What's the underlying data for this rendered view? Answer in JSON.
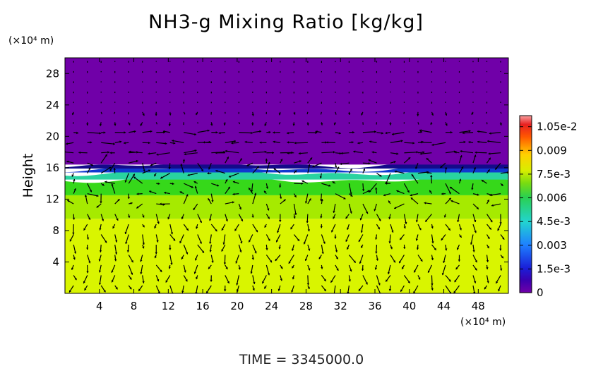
{
  "chart_data": {
    "type": "heatmap",
    "title": "NH3-g Mixing Ratio [kg/kg]",
    "ylabel": "Height",
    "y_unit": "(×10⁴ m)",
    "x_unit": "(×10⁴ m)",
    "footer": "TIME = 3345000.0",
    "x_ticks": [
      "4",
      "8",
      "12",
      "16",
      "20",
      "24",
      "28",
      "32",
      "36",
      "40",
      "44",
      "48"
    ],
    "x_tick_values": [
      4,
      8,
      12,
      16,
      20,
      24,
      28,
      32,
      36,
      40,
      44,
      48
    ],
    "y_ticks": [
      "4",
      "8",
      "12",
      "16",
      "20",
      "24",
      "28"
    ],
    "y_tick_values": [
      4,
      8,
      12,
      16,
      20,
      24,
      28
    ],
    "xlim": [
      0,
      51.5
    ],
    "ylim": [
      0,
      30
    ],
    "colorbar": {
      "labels": [
        "0",
        "1.5e-3",
        "0.003",
        "4.5e-3",
        "0.006",
        "7.5e-3",
        "0.009",
        "1.05e-2"
      ],
      "values": [
        0,
        0.0015,
        0.003,
        0.0045,
        0.006,
        0.0075,
        0.009,
        0.0105
      ],
      "range": [
        0,
        0.0112
      ]
    },
    "field_layers": [
      {
        "from_height": 0,
        "to_height": 9.5,
        "value": 0.008,
        "color": "#d9f500"
      },
      {
        "from_height": 9.5,
        "to_height": 12.5,
        "value": 0.0072,
        "color": "#a6ea00"
      },
      {
        "from_height": 12.5,
        "to_height": 14.5,
        "value": 0.0062,
        "color": "#36d81a"
      },
      {
        "from_height": 14.5,
        "to_height": 15.4,
        "value": 0.0045,
        "color": "#29d3a0"
      },
      {
        "from_height": 15.4,
        "to_height": 15.9,
        "value": 0.002,
        "color": "#1038d0"
      },
      {
        "from_height": 15.9,
        "to_height": 16.4,
        "value": 0.0005,
        "color": "#140a8a"
      },
      {
        "from_height": 16.4,
        "to_height": 30,
        "value": 0,
        "color": "#7000a8"
      }
    ],
    "vectors": "wind arrows overlaid"
  }
}
